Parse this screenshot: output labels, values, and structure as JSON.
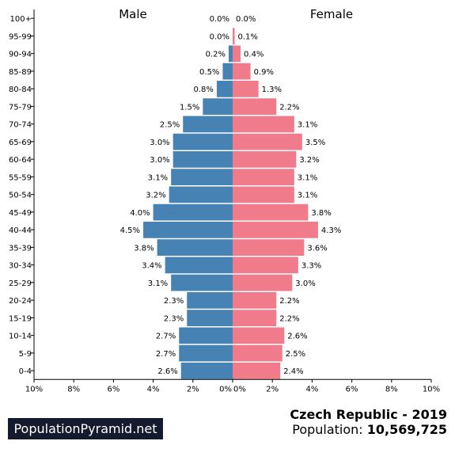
{
  "chart_data": {
    "type": "bar",
    "orientation": "horizontal-pyramid",
    "categories": [
      "100+",
      "95-99",
      "90-94",
      "85-89",
      "80-84",
      "75-79",
      "70-74",
      "65-69",
      "60-64",
      "55-59",
      "50-54",
      "45-49",
      "40-44",
      "35-39",
      "30-34",
      "25-29",
      "20-24",
      "15-19",
      "10-14",
      "5-9",
      "0-4"
    ],
    "series": [
      {
        "name": "Male",
        "color": "#4682b4",
        "values": [
          0.0,
          0.0,
          0.2,
          0.5,
          0.8,
          1.5,
          2.5,
          3.0,
          3.0,
          3.1,
          3.2,
          4.0,
          4.5,
          3.8,
          3.4,
          3.1,
          2.3,
          2.3,
          2.7,
          2.7,
          2.6
        ],
        "labels": [
          "0.0%",
          "0.0%",
          "0.2%",
          "0.5%",
          "0.8%",
          "1.5%",
          "2.5%",
          "3.0%",
          "3.0%",
          "3.1%",
          "3.2%",
          "4.0%",
          "4.5%",
          "3.8%",
          "3.4%",
          "3.1%",
          "2.3%",
          "2.3%",
          "2.7%",
          "2.7%",
          "2.6%"
        ]
      },
      {
        "name": "Female",
        "color": "#f07b8a",
        "values": [
          0.0,
          0.1,
          0.4,
          0.9,
          1.3,
          2.2,
          3.1,
          3.5,
          3.2,
          3.1,
          3.1,
          3.8,
          4.3,
          3.6,
          3.3,
          3.0,
          2.2,
          2.2,
          2.6,
          2.5,
          2.4
        ],
        "labels": [
          "0.0%",
          "0.1%",
          "0.4%",
          "0.9%",
          "1.3%",
          "2.2%",
          "3.1%",
          "3.5%",
          "3.2%",
          "3.1%",
          "3.1%",
          "3.8%",
          "4.3%",
          "3.6%",
          "3.3%",
          "3.0%",
          "2.2%",
          "2.2%",
          "2.6%",
          "2.5%",
          "2.4%"
        ]
      }
    ],
    "xlim": [
      -10,
      10
    ],
    "xticks": [
      -10,
      -8,
      -6,
      -4,
      -2,
      0,
      2,
      4,
      6,
      8,
      10
    ],
    "xtick_labels_left": [
      "10%",
      "8%",
      "6%",
      "4%",
      "2%",
      "0%"
    ],
    "xtick_labels_right": [
      "0%",
      "2%",
      "4%",
      "6%",
      "8%",
      "10%"
    ],
    "grid": false,
    "legend": "none"
  },
  "headers": {
    "male": "Male",
    "female": "Female"
  },
  "footer": {
    "brand": "PopulationPyramid.net",
    "country_year": "Czech Republic - 2019",
    "population_label": "Population:",
    "population_value": "10,569,725"
  }
}
